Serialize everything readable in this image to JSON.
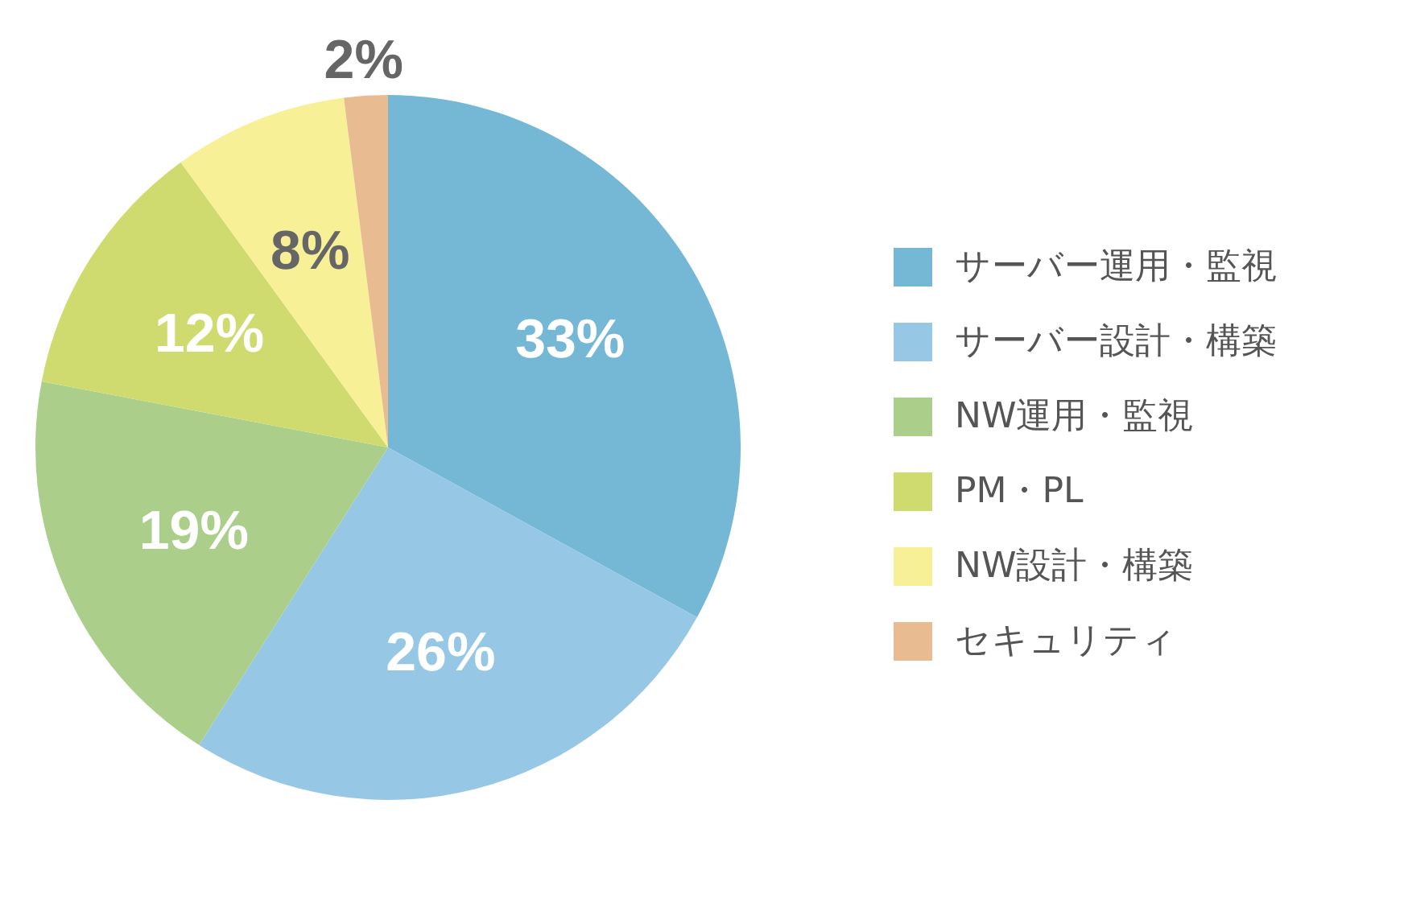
{
  "chart_data": {
    "type": "pie",
    "categories": [
      "サーバー運用・監視",
      "サーバー設計・構築",
      "NW運用・監視",
      "PM・PL",
      "NW設計・構築",
      "セキュリティ"
    ],
    "values": [
      33,
      26,
      19,
      12,
      8,
      2
    ],
    "colors": [
      "#74b8d5",
      "#96c8e6",
      "#abcf8a",
      "#cfdb6e",
      "#f7f096",
      "#e8bb90"
    ],
    "value_labels": [
      "33%",
      "26%",
      "19%",
      "12%",
      "8%",
      "2%"
    ],
    "legend": "right"
  }
}
